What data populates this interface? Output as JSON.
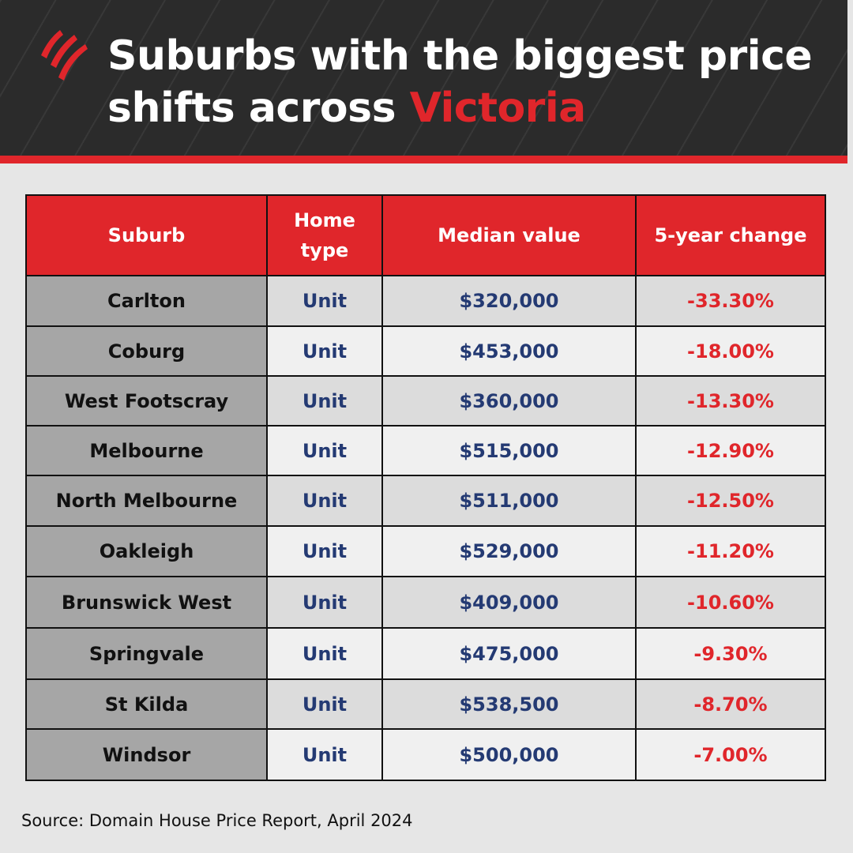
{
  "header": {
    "title_line1": "Suburbs with the biggest price",
    "title_line2_prefix": "shifts across ",
    "title_highlight": "Victoria",
    "logo_icon": "sbs-logo-icon"
  },
  "table": {
    "columns": [
      "Suburb",
      "Home type",
      "Median value",
      "5-year change"
    ],
    "rows": [
      {
        "suburb": "Carlton",
        "home_type": "Unit",
        "median": "$320,000",
        "change": "-33.30%"
      },
      {
        "suburb": "Coburg",
        "home_type": "Unit",
        "median": "$453,000",
        "change": "-18.00%"
      },
      {
        "suburb": "West Footscray",
        "home_type": "Unit",
        "median": "$360,000",
        "change": "-13.30%"
      },
      {
        "suburb": "Melbourne",
        "home_type": "Unit",
        "median": "$515,000",
        "change": "-12.90%"
      },
      {
        "suburb": "North Melbourne",
        "home_type": "Unit",
        "median": "$511,000",
        "change": "-12.50%"
      },
      {
        "suburb": "Oakleigh",
        "home_type": "Unit",
        "median": "$529,000",
        "change": "-11.20%"
      },
      {
        "suburb": "Brunswick West",
        "home_type": "Unit",
        "median": "$409,000",
        "change": "-10.60%"
      },
      {
        "suburb": "Springvale",
        "home_type": "Unit",
        "median": "$475,000",
        "change": "-9.30%"
      },
      {
        "suburb": "St Kilda",
        "home_type": "Unit",
        "median": "$538,500",
        "change": "-8.70%"
      },
      {
        "suburb": "Windsor",
        "home_type": "Unit",
        "median": "$500,000",
        "change": "-7.00%"
      }
    ]
  },
  "source": "Source: Domain House Price Report, April 2024",
  "colors": {
    "header_bg": "#2b2b2b",
    "accent_red": "#e0262b",
    "value_navy": "#243a73",
    "suburb_cell": "#a6a6a6",
    "page_bg": "#e6e6e6"
  }
}
